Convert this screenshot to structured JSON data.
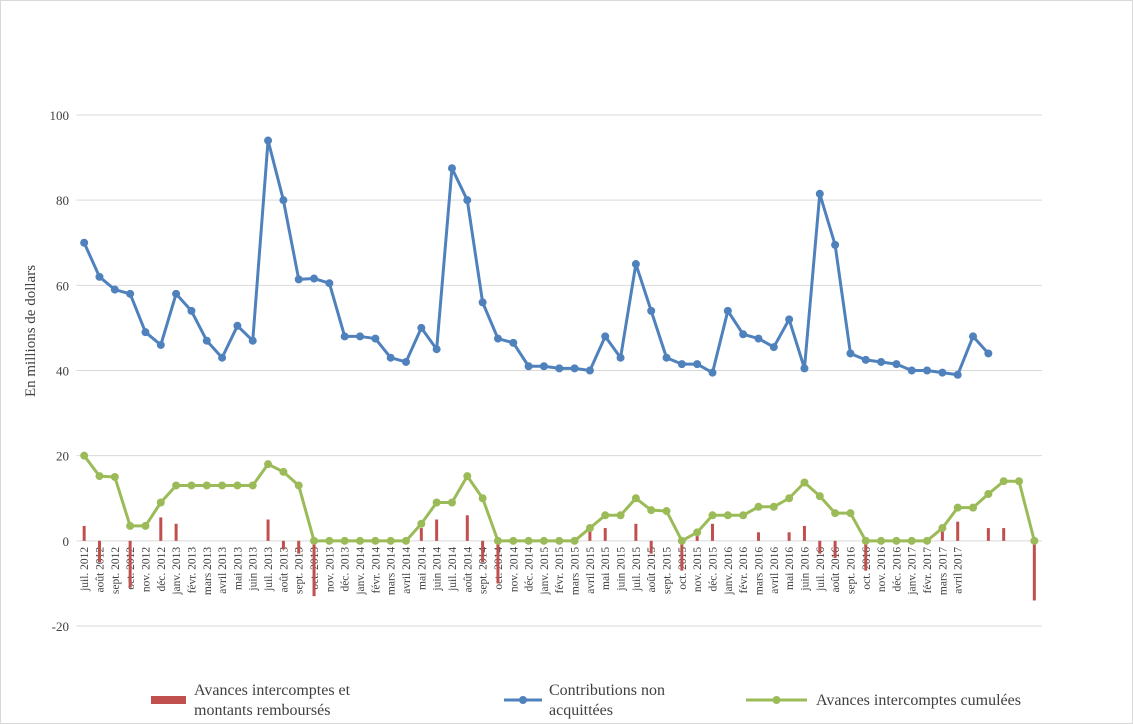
{
  "chart_data": {
    "type": "combo",
    "y_label": "En millions de dollars",
    "ylim": [
      -20,
      100
    ],
    "yticks": [
      -20,
      0,
      20,
      40,
      60,
      80,
      100
    ],
    "grid": true,
    "legend": "bottom",
    "categories": [
      "juil. 2012",
      "août 2012",
      "sept. 2012",
      "oct. 2012",
      "nov. 2012",
      "déc. 2012",
      "janv. 2013",
      "févr. 2013",
      "mars 2013",
      "avril 2013",
      "mai 2013",
      "juin 2013",
      "juil. 2013",
      "août 2013",
      "sept. 2013",
      "oct. 2013",
      "nov. 2013",
      "déc. 2013",
      "janv. 2014",
      "févr. 2014",
      "mars 2014",
      "avril 2014",
      "mai 2014",
      "juin 2014",
      "juil. 2014",
      "août 2014",
      "sept. 2014",
      "oct. 2014",
      "nov. 2014",
      "déc. 2014",
      "janv. 2015",
      "févr. 2015",
      "mars 2015",
      "avril 2015",
      "mai 2015",
      "juin 2015",
      "juil. 2015",
      "août 2015",
      "sept. 2015",
      "oct. 2015",
      "nov. 2015",
      "déc. 2015",
      "janv. 2016",
      "févr. 2016",
      "mars 2016",
      "avril 2016",
      "mai 2016",
      "juin 2016",
      "juil. 2016",
      "août 2016",
      "sept. 2016",
      "oct. 2016",
      "nov. 2016",
      "déc. 2016",
      "janv. 2017",
      "févr. 2017",
      "mars 2017",
      "avril 2017",
      null,
      null,
      null,
      null,
      null
    ],
    "series": [
      {
        "name": "Avances intercomptes et montants remboursés",
        "type": "bar",
        "color": "#c0504d",
        "values": [
          3.5,
          -5,
          0,
          -11,
          0,
          5.5,
          4,
          0,
          0,
          0,
          0,
          0,
          5,
          -2,
          -3,
          -13,
          0,
          0,
          0,
          0,
          0,
          0,
          3,
          5,
          0,
          6,
          -5,
          -10,
          0,
          0,
          0,
          0,
          0,
          3,
          3,
          0,
          4,
          -3,
          0,
          -7,
          2,
          4,
          0,
          0,
          2,
          0,
          2,
          3.5,
          -3,
          -4,
          0,
          -7,
          0,
          0,
          0,
          0,
          3,
          4.5,
          0,
          3,
          3,
          0,
          -14
        ]
      },
      {
        "name": "Contributions non acquittées",
        "type": "line",
        "color": "#4f81bd",
        "values": [
          70,
          62,
          59,
          58,
          49,
          46,
          58,
          54,
          47,
          43,
          50.5,
          47,
          94,
          80,
          61.4,
          61.6,
          60.5,
          48,
          48,
          47.5,
          43,
          42,
          50,
          45,
          87.5,
          80,
          56,
          47.5,
          46.5,
          41,
          41,
          40.5,
          40.5,
          40,
          48,
          43,
          65,
          54,
          43,
          41.5,
          41.5,
          39.5,
          54,
          48.5,
          47.5,
          45.5,
          52,
          40.5,
          81.5,
          69.5,
          44,
          42.5,
          42,
          41.5,
          40,
          40,
          39.5,
          39,
          48,
          44,
          null,
          null,
          null
        ]
      },
      {
        "name": "Avances intercomptes cumulées",
        "type": "line",
        "color": "#9bbb59",
        "values": [
          20,
          15.2,
          15,
          3.5,
          3.5,
          9,
          13,
          13,
          13,
          13,
          13,
          13,
          18,
          16.2,
          13,
          0,
          0,
          0,
          0,
          0,
          0,
          0,
          4,
          9,
          9,
          15.2,
          10,
          0,
          0,
          0,
          0,
          0,
          0,
          3,
          6,
          6,
          10,
          7.2,
          7,
          0,
          2,
          6,
          6,
          6,
          8,
          8,
          10,
          13.7,
          10.5,
          6.5,
          6.5,
          0,
          0,
          0,
          0,
          0,
          3,
          7.8,
          7.8,
          11,
          14,
          14,
          0
        ]
      }
    ]
  }
}
